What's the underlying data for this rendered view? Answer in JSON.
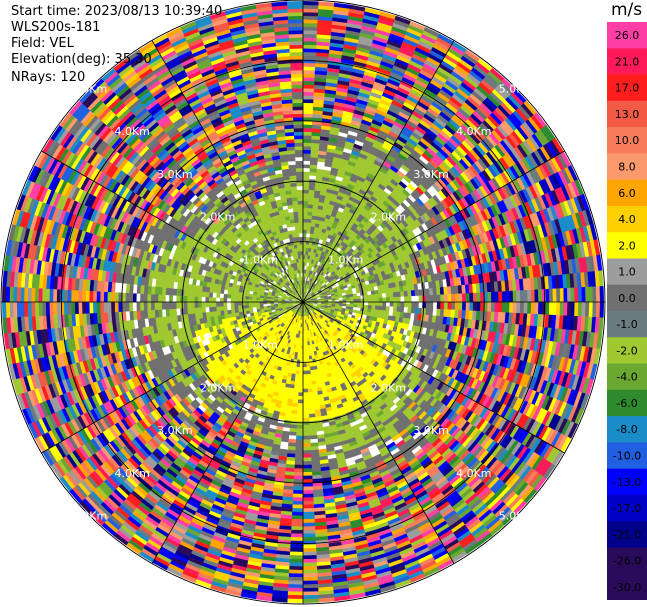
{
  "info": {
    "start_time": "Start time: 2023/08/13 10:39:40",
    "instrument": "WLS200s-181",
    "field": "Field: VEL",
    "elevation": "Elevation(deg): 35.30",
    "nrays": "NRays: 120"
  },
  "colorbar": {
    "unit": "m/s",
    "levels": [
      {
        "label": "26.0",
        "color": "#ff3fa6"
      },
      {
        "label": "21.0",
        "color": "#ff1a5a"
      },
      {
        "label": "17.0",
        "color": "#ff1e1e"
      },
      {
        "label": "13.0",
        "color": "#f25a45"
      },
      {
        "label": "10.0",
        "color": "#f97d5b"
      },
      {
        "label": "8.0",
        "color": "#fb9a6c"
      },
      {
        "label": "6.0",
        "color": "#ffa500"
      },
      {
        "label": "4.0",
        "color": "#ffd000"
      },
      {
        "label": "2.0",
        "color": "#ffff00"
      },
      {
        "label": "1.0",
        "color": "#9c9c9c"
      },
      {
        "label": "0.0",
        "color": "#707070"
      },
      {
        "label": "-1.0",
        "color": "#6b7c80"
      },
      {
        "label": "-2.0",
        "color": "#a0c830"
      },
      {
        "label": "-4.0",
        "color": "#6aa832"
      },
      {
        "label": "-6.0",
        "color": "#2e8b2e"
      },
      {
        "label": "-8.0",
        "color": "#1a8cc8"
      },
      {
        "label": "-10.0",
        "color": "#2060e0"
      },
      {
        "label": "-13.0",
        "color": "#0000ff"
      },
      {
        "label": "-17.0",
        "color": "#0000c8"
      },
      {
        "label": "-21.0",
        "color": "#00008b"
      },
      {
        "label": "-26.0",
        "color": "#2a0a5a"
      },
      {
        "label": "-30.0",
        "color": "#2a0a5a"
      }
    ]
  },
  "chart_data": {
    "type": "heatmap",
    "projection": "polar PPI",
    "field": "VEL",
    "nrays": 120,
    "ring_labels_km": [
      "1.0Km",
      "2.0Km",
      "3.0Km",
      "4.0Km",
      "5.0Km"
    ],
    "max_range_km": 5.0,
    "vmin": -30.0,
    "vmax": 26.0,
    "colors": {
      "clear_air_negative": "#a0c830",
      "clear_air_positive": "#ffff00",
      "near_zero": "#707070",
      "rings": "#000000"
    }
  }
}
